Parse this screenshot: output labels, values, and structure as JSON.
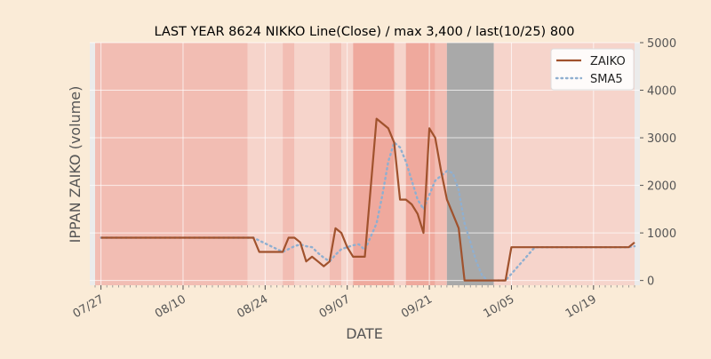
{
  "chart_data": {
    "type": "line",
    "title": "LAST YEAR 8624 NIKKO Line(Close) / max 3,400 / last(10/25) 800",
    "xlabel": "DATE",
    "ylabel": "IPPAN ZAIKO (volume)",
    "x_start": "2023-07-26",
    "x_range": [
      "2023-07-26",
      "2023-10-26"
    ],
    "ylim": [
      -100,
      5000
    ],
    "y_ticks": [
      0,
      1000,
      2000,
      3000,
      4000,
      5000
    ],
    "x_ticks": [
      {
        "date": "2023-07-27",
        "label": "07/27"
      },
      {
        "date": "2023-08-10",
        "label": "08/10"
      },
      {
        "date": "2023-08-24",
        "label": "08/24"
      },
      {
        "date": "2023-09-07",
        "label": "09/07"
      },
      {
        "date": "2023-09-21",
        "label": "09/21"
      },
      {
        "date": "2023-10-05",
        "label": "10/05"
      },
      {
        "date": "2023-10-19",
        "label": "10/19"
      }
    ],
    "y_axis_side": "right",
    "grid": true,
    "legend_position": "top-right",
    "colors": {
      "background": "#FAEBD7",
      "zaiko": "#A0522D",
      "sma5": "#8FAFD0",
      "band_light": "#F6D4CB",
      "band_medium": "#F2BDB3",
      "band_strong": "#EFA99D",
      "band_gray": "#A9A9A9"
    },
    "bands": [
      {
        "start": "2023-07-26",
        "end": "2023-08-21",
        "level": "medium"
      },
      {
        "start": "2023-08-21",
        "end": "2023-08-27",
        "level": "light"
      },
      {
        "start": "2023-08-27",
        "end": "2023-08-29",
        "level": "medium"
      },
      {
        "start": "2023-08-29",
        "end": "2023-09-04",
        "level": "light"
      },
      {
        "start": "2023-09-04",
        "end": "2023-09-06",
        "level": "medium"
      },
      {
        "start": "2023-09-06",
        "end": "2023-09-08",
        "level": "light"
      },
      {
        "start": "2023-09-08",
        "end": "2023-09-15",
        "level": "strong"
      },
      {
        "start": "2023-09-15",
        "end": "2023-09-17",
        "level": "light"
      },
      {
        "start": "2023-09-17",
        "end": "2023-09-22",
        "level": "strong"
      },
      {
        "start": "2023-09-22",
        "end": "2023-09-24",
        "level": "medium"
      },
      {
        "start": "2023-09-24",
        "end": "2023-10-02",
        "level": "gray"
      },
      {
        "start": "2023-10-02",
        "end": "2023-10-26",
        "level": "light"
      }
    ],
    "series": [
      {
        "name": "ZAIKO",
        "style": "solid",
        "points": [
          [
            "2023-07-27",
            900
          ],
          [
            "2023-08-22",
            900
          ],
          [
            "2023-08-23",
            600
          ],
          [
            "2023-08-27",
            600
          ],
          [
            "2023-08-28",
            900
          ],
          [
            "2023-08-29",
            900
          ],
          [
            "2023-08-30",
            800
          ],
          [
            "2023-08-31",
            400
          ],
          [
            "2023-09-01",
            500
          ],
          [
            "2023-09-02",
            400
          ],
          [
            "2023-09-03",
            300
          ],
          [
            "2023-09-04",
            400
          ],
          [
            "2023-09-05",
            1100
          ],
          [
            "2023-09-06",
            1000
          ],
          [
            "2023-09-07",
            700
          ],
          [
            "2023-09-08",
            500
          ],
          [
            "2023-09-09",
            500
          ],
          [
            "2023-09-10",
            500
          ],
          [
            "2023-09-12",
            3400
          ],
          [
            "2023-09-14",
            3200
          ],
          [
            "2023-09-15",
            2900
          ],
          [
            "2023-09-16",
            1700
          ],
          [
            "2023-09-17",
            1700
          ],
          [
            "2023-09-18",
            1600
          ],
          [
            "2023-09-19",
            1400
          ],
          [
            "2023-09-20",
            1000
          ],
          [
            "2023-09-21",
            3200
          ],
          [
            "2023-09-22",
            3000
          ],
          [
            "2023-09-23",
            2300
          ],
          [
            "2023-09-24",
            1700
          ],
          [
            "2023-09-26",
            1100
          ],
          [
            "2023-09-27",
            0
          ],
          [
            "2023-10-04",
            0
          ],
          [
            "2023-10-05",
            700
          ],
          [
            "2023-10-25",
            700
          ],
          [
            "2023-10-26",
            800
          ]
        ]
      },
      {
        "name": "SMA5",
        "style": "dotted",
        "points": [
          [
            "2023-07-27",
            900
          ],
          [
            "2023-08-22",
            900
          ],
          [
            "2023-08-23",
            840
          ],
          [
            "2023-08-24",
            780
          ],
          [
            "2023-08-25",
            720
          ],
          [
            "2023-08-26",
            660
          ],
          [
            "2023-08-27",
            600
          ],
          [
            "2023-08-28",
            660
          ],
          [
            "2023-08-29",
            720
          ],
          [
            "2023-08-30",
            760
          ],
          [
            "2023-08-31",
            720
          ],
          [
            "2023-09-01",
            700
          ],
          [
            "2023-09-02",
            580
          ],
          [
            "2023-09-03",
            480
          ],
          [
            "2023-09-04",
            400
          ],
          [
            "2023-09-05",
            540
          ],
          [
            "2023-09-06",
            660
          ],
          [
            "2023-09-07",
            700
          ],
          [
            "2023-09-08",
            740
          ],
          [
            "2023-09-09",
            760
          ],
          [
            "2023-09-10",
            640
          ],
          [
            "2023-09-12",
            1200
          ],
          [
            "2023-09-13",
            1800
          ],
          [
            "2023-09-14",
            2500
          ],
          [
            "2023-09-15",
            2900
          ],
          [
            "2023-09-16",
            2800
          ],
          [
            "2023-09-17",
            2500
          ],
          [
            "2023-09-18",
            2100
          ],
          [
            "2023-09-19",
            1700
          ],
          [
            "2023-09-20",
            1500
          ],
          [
            "2023-09-21",
            1800
          ],
          [
            "2023-09-22",
            2100
          ],
          [
            "2023-09-23",
            2200
          ],
          [
            "2023-09-24",
            2300
          ],
          [
            "2023-09-25",
            2260
          ],
          [
            "2023-09-26",
            1900
          ],
          [
            "2023-09-27",
            1200
          ],
          [
            "2023-09-28",
            800
          ],
          [
            "2023-09-29",
            400
          ],
          [
            "2023-09-30",
            100
          ],
          [
            "2023-10-01",
            0
          ],
          [
            "2023-10-02",
            0
          ],
          [
            "2023-10-04",
            0
          ],
          [
            "2023-10-05",
            140
          ],
          [
            "2023-10-06",
            280
          ],
          [
            "2023-10-07",
            420
          ],
          [
            "2023-10-08",
            560
          ],
          [
            "2023-10-09",
            700
          ],
          [
            "2023-10-25",
            700
          ],
          [
            "2023-10-26",
            720
          ]
        ]
      }
    ]
  }
}
